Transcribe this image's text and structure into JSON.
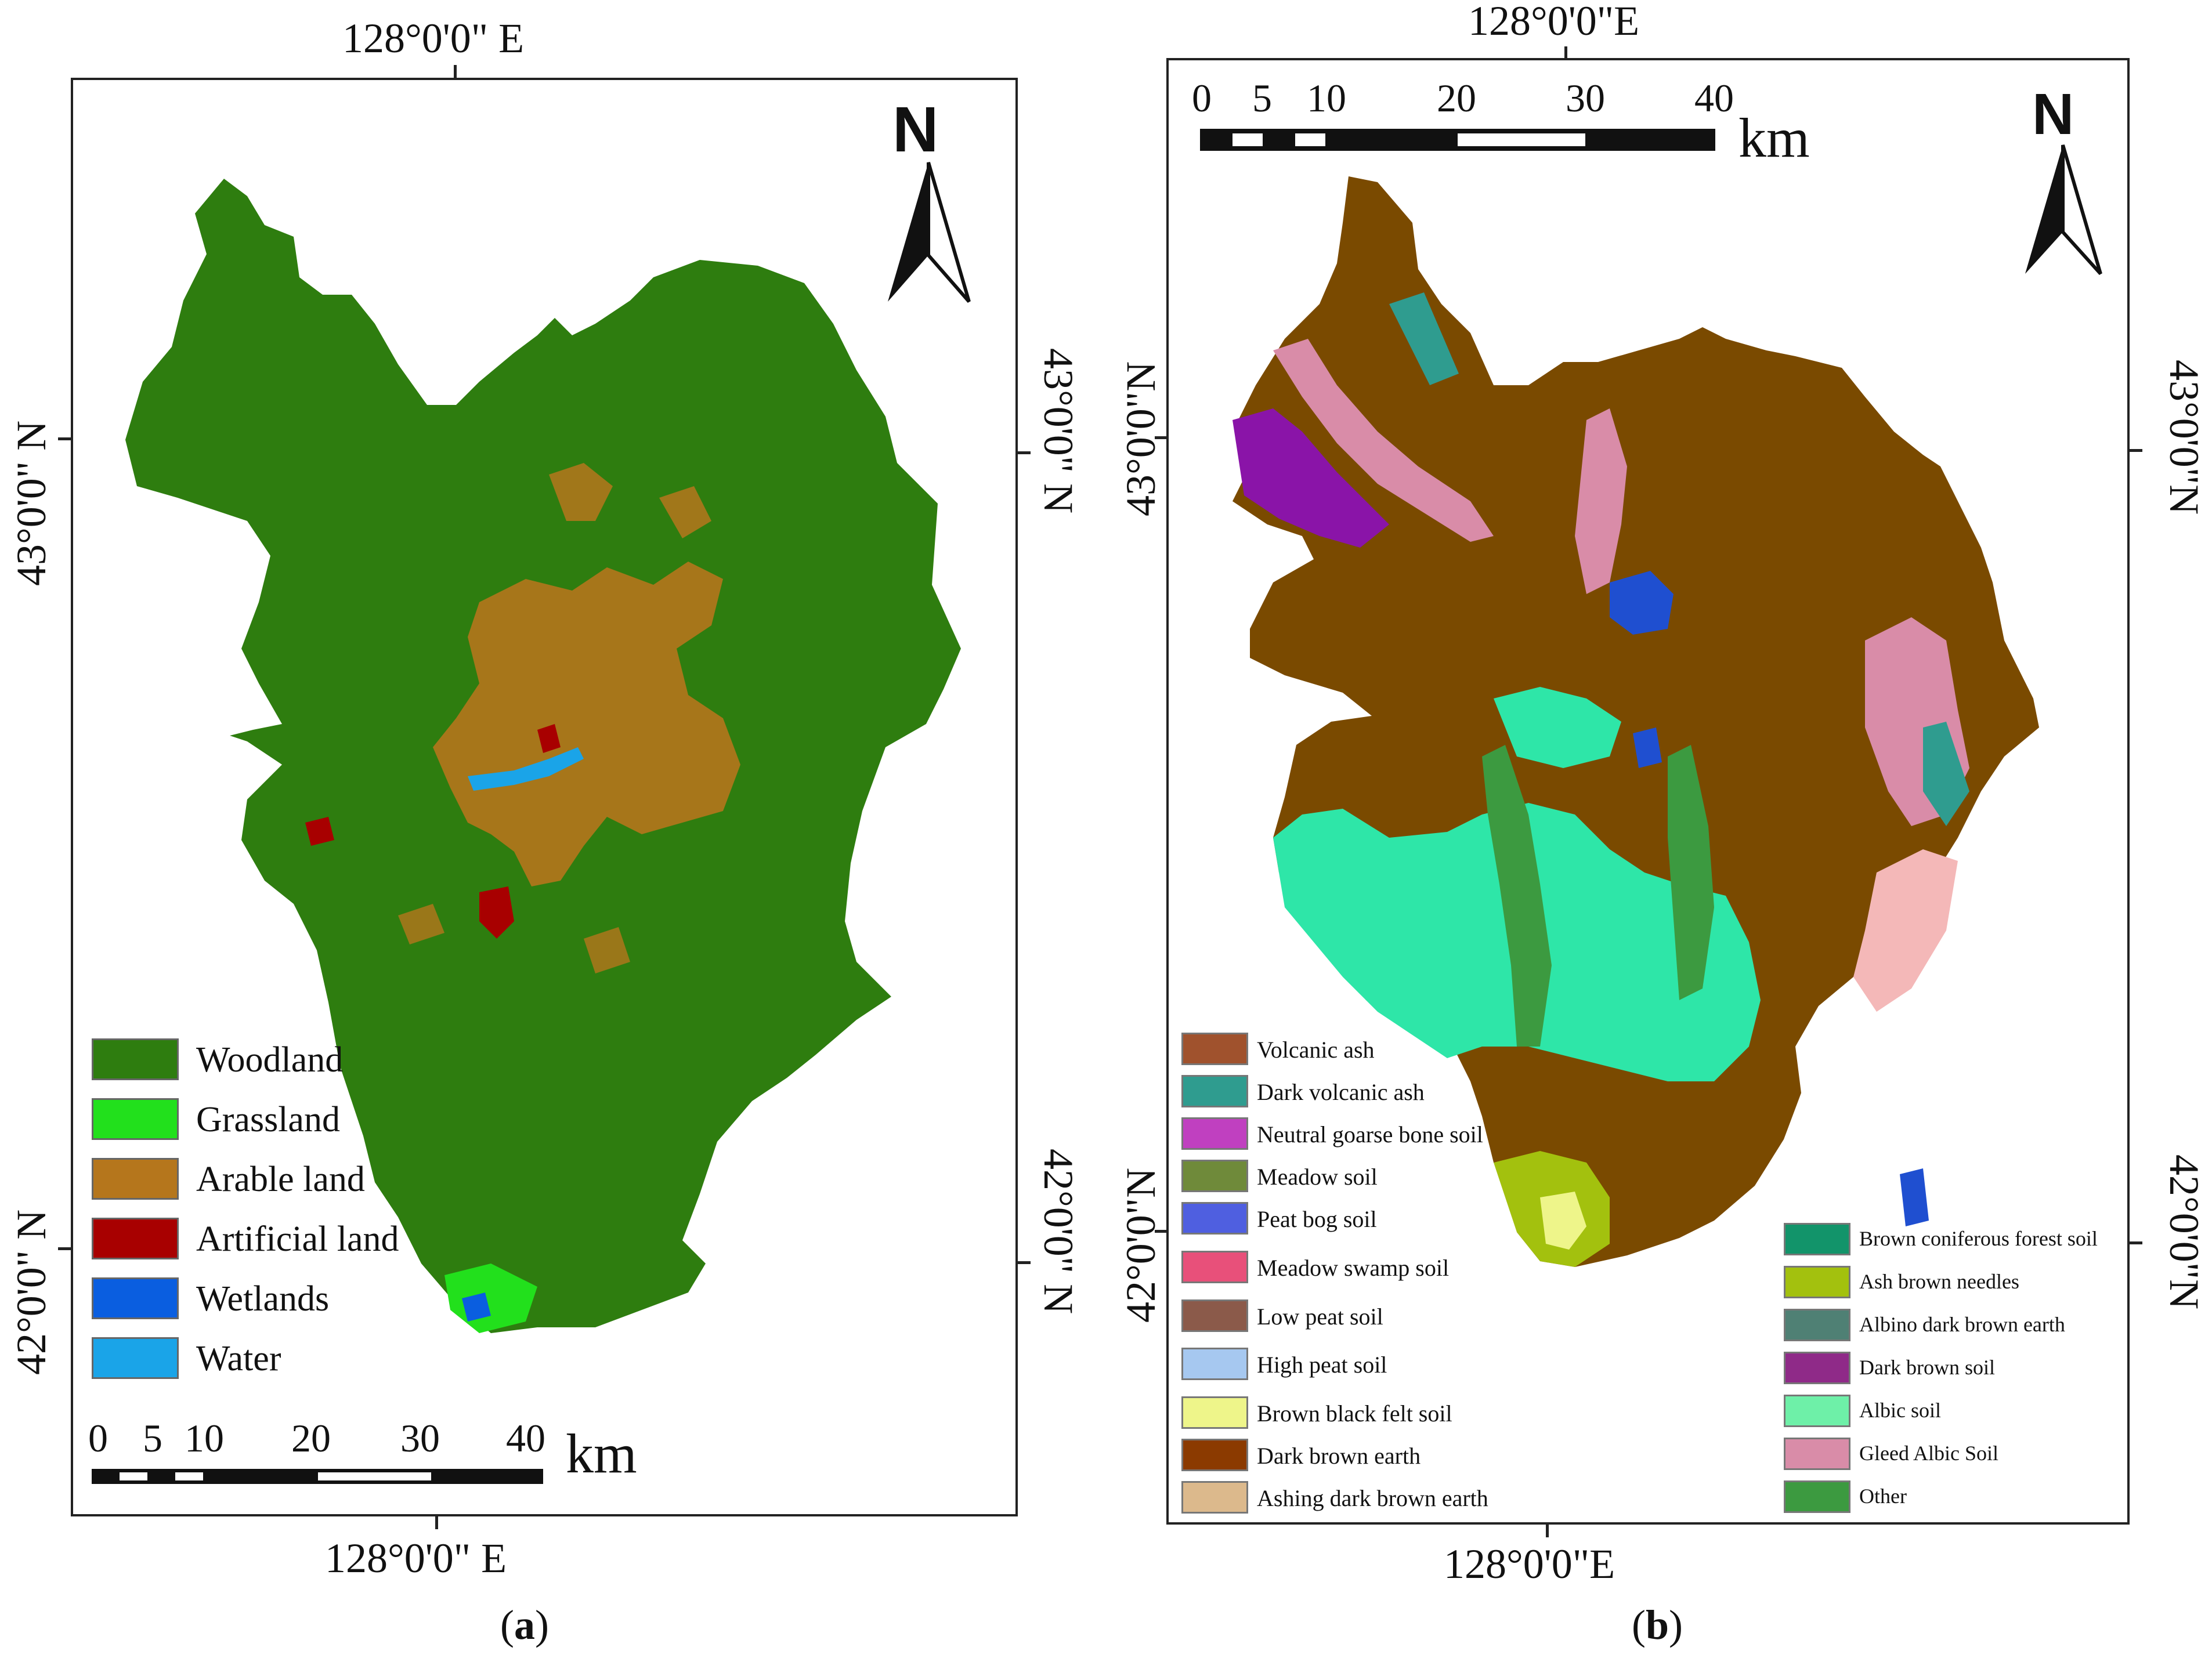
{
  "panel_a": {
    "caption": "(a)",
    "caption_letter": "a",
    "top_lon": "128°0'0\" E",
    "bottom_lon": "128°0'0\" E",
    "left_lat_top": "43°0'0\" N",
    "left_lat_bottom": "42°0'0\" N",
    "right_lat_top": "43°0'0\" N",
    "right_lat_bottom": "42°0'0\" N",
    "north": "N",
    "scale": {
      "ticks": [
        "0",
        "5",
        "10",
        "20",
        "30",
        "40"
      ],
      "unit": "km"
    },
    "legend": [
      {
        "label": "Woodland",
        "color": "#2e7d0f"
      },
      {
        "label": "Grassland",
        "color": "#22e01c"
      },
      {
        "label": "Arable land",
        "color": "#b5761c"
      },
      {
        "label": "Artificial land",
        "color": "#a80000"
      },
      {
        "label": "Wetlands",
        "color": "#0a5ee0"
      },
      {
        "label": "Water",
        "color": "#1aa4e8"
      }
    ]
  },
  "panel_b": {
    "caption": "(b)",
    "caption_letter": "b",
    "top_lon": "128°0'0\"E",
    "bottom_lon": "128°0'0\"E",
    "left_lat_top": "43°0'0\"N",
    "left_lat_bottom": "42°0'0\"N",
    "right_lat_top": "43°0'0\"N",
    "right_lat_bottom": "42°0'0\"N",
    "north": "N",
    "scale": {
      "ticks": [
        "0",
        "5",
        "10",
        "20",
        "30",
        "40"
      ],
      "unit": "km"
    },
    "legend_left": [
      {
        "label": "Volcanic ash",
        "color": "#a0522d"
      },
      {
        "label": "Dark volcanic ash",
        "color": "#2f9c8f"
      },
      {
        "label": "Neutral goarse bone soil",
        "color": "#c040c0"
      },
      {
        "label": "Meadow soil",
        "color": "#6f8a3a"
      },
      {
        "label": "Peat bog soil",
        "color": "#4f5fe0"
      },
      {
        "label": "Meadow swamp soil",
        "color": "#e8507a"
      },
      {
        "label": "Low peat soil",
        "color": "#8b5a4a"
      },
      {
        "label": "High peat soil",
        "color": "#a6c8f0"
      },
      {
        "label": "Brown black felt soil",
        "color": "#eef58a"
      },
      {
        "label": "Dark brown earth",
        "color": "#8b3a00"
      },
      {
        "label": "Ashing dark brown earth",
        "color": "#dcb98c"
      }
    ],
    "legend_right": [
      {
        "label": "Brown coniferous forest soil",
        "color": "#12946a"
      },
      {
        "label": "Ash brown needles",
        "color": "#a3c10e"
      },
      {
        "label": "Albino dark brown earth",
        "color": "#4f8074"
      },
      {
        "label": "Dark brown soil",
        "color": "#8f2a88"
      },
      {
        "label": "Albic soil",
        "color": "#6ef0a8"
      },
      {
        "label": "Gleed Albic Soil",
        "color": "#d98ca8"
      },
      {
        "label": "Other",
        "color": "#3c9a40"
      }
    ]
  }
}
